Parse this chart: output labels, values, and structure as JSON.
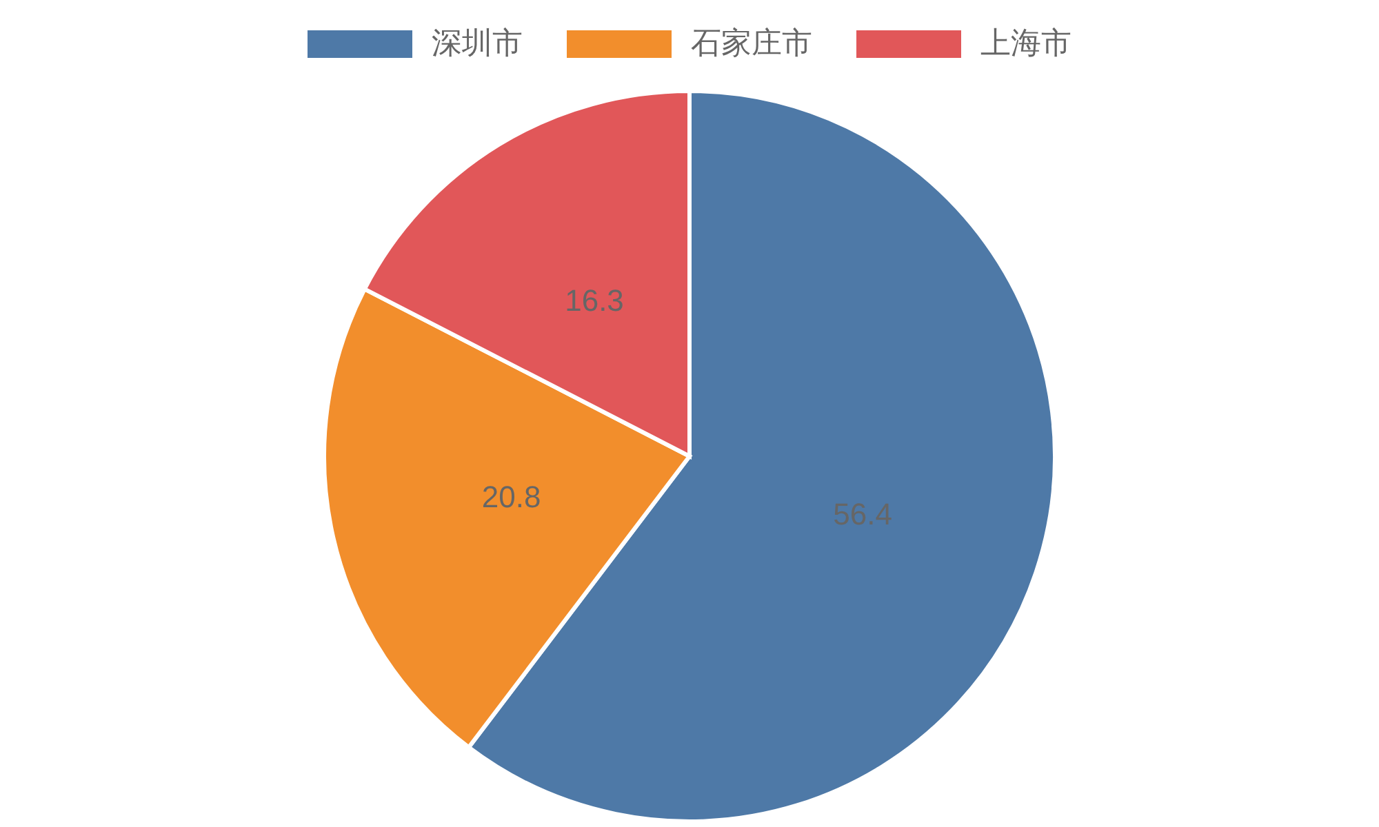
{
  "chart_data": {
    "type": "pie",
    "categories": [
      "深圳市",
      "石家庄市",
      "上海市"
    ],
    "values": [
      56.4,
      20.8,
      16.3
    ],
    "colors": [
      "#4e79a7",
      "#f28e2c",
      "#e15759"
    ],
    "data_labels": true,
    "legend": "top"
  }
}
